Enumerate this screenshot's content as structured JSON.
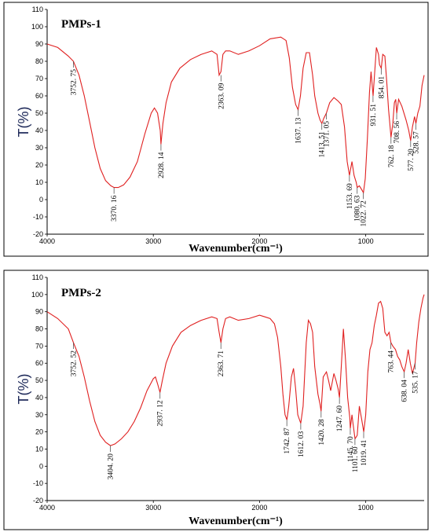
{
  "chart_data": [
    {
      "type": "line",
      "title": "PMPs-1",
      "xlabel": "Wavenumber(cm⁻¹)",
      "ylabel": "T(%)",
      "xlim": [
        4000,
        450
      ],
      "ylim": [
        -20,
        110
      ],
      "yticks": [
        -20,
        -10,
        0,
        10,
        20,
        30,
        40,
        50,
        60,
        70,
        80,
        90,
        100,
        110
      ],
      "xticks": [
        4000,
        3000,
        2000,
        1000
      ],
      "peaks": [
        {
          "label": "3752. 75",
          "x": 3752.75,
          "y": 80
        },
        {
          "label": "3370. 16",
          "x": 3370.16,
          "y": 7
        },
        {
          "label": "2928. 14",
          "x": 2928.14,
          "y": 32
        },
        {
          "label": "2363. 09",
          "x": 2363.09,
          "y": 72
        },
        {
          "label": "1637. 13",
          "x": 1637.13,
          "y": 52
        },
        {
          "label": "1413. 51",
          "x": 1413.51,
          "y": 44
        },
        {
          "label": "1371. 05",
          "x": 1371.05,
          "y": 50
        },
        {
          "label": "1153. 69",
          "x": 1153.69,
          "y": 14
        },
        {
          "label": "1080. 63",
          "x": 1080.63,
          "y": 7
        },
        {
          "label": "1022. 72",
          "x": 1022.72,
          "y": 4
        },
        {
          "label": "931. 51",
          "x": 931.51,
          "y": 60
        },
        {
          "label": "854. 01",
          "x": 854.01,
          "y": 76
        },
        {
          "label": "762. 18",
          "x": 762.18,
          "y": 36
        },
        {
          "label": "708. 56",
          "x": 708.56,
          "y": 50
        },
        {
          "label": "577. 20",
          "x": 577.2,
          "y": 34
        },
        {
          "label": "528. 57",
          "x": 528.57,
          "y": 44
        }
      ],
      "series": [
        {
          "x": [
            4000,
            3900,
            3800,
            3752,
            3700,
            3650,
            3600,
            3550,
            3500,
            3450,
            3400,
            3370,
            3330,
            3280,
            3220,
            3150,
            3080,
            3020,
            2990,
            2960,
            2935,
            2928,
            2910,
            2880,
            2830,
            2750,
            2650,
            2550,
            2450,
            2400,
            2380,
            2363,
            2345,
            2320,
            2280,
            2200,
            2100,
            2000,
            1900,
            1800,
            1750,
            1720,
            1690,
            1660,
            1637,
            1615,
            1590,
            1560,
            1530,
            1500,
            1480,
            1450,
            1430,
            1413,
            1395,
            1371,
            1340,
            1300,
            1260,
            1230,
            1200,
            1175,
            1153,
            1130,
            1110,
            1090,
            1080,
            1060,
            1040,
            1022,
            1005,
            985,
            965,
            950,
            940,
            931,
            920,
            900,
            880,
            870,
            854,
            840,
            820,
            800,
            785,
            775,
            762,
            745,
            730,
            718,
            708,
            690,
            660,
            620,
            595,
            577,
            560,
            540,
            528,
            510,
            490,
            470,
            450
          ],
          "y": [
            90,
            88,
            83,
            80,
            72,
            60,
            45,
            30,
            18,
            11,
            8,
            7,
            7,
            8.5,
            13,
            22,
            38,
            50,
            53,
            50,
            40,
            32,
            44,
            56,
            68,
            76,
            81,
            84,
            86,
            84,
            72,
            74,
            84,
            86,
            86,
            84,
            86,
            89,
            93,
            94,
            92,
            82,
            65,
            55,
            52,
            60,
            76,
            85,
            85,
            72,
            60,
            50,
            46,
            44,
            47,
            50,
            56,
            59,
            57,
            55,
            42,
            22,
            14,
            22,
            14,
            10,
            7,
            8,
            6,
            4,
            12,
            35,
            62,
            74,
            67,
            60,
            70,
            88,
            84,
            78,
            76,
            84,
            83,
            66,
            52,
            45,
            36,
            44,
            56,
            58,
            50,
            58,
            54,
            46,
            40,
            34,
            42,
            48,
            44,
            50,
            54,
            66,
            72
          ]
        }
      ]
    },
    {
      "type": "line",
      "title": "PMPs-2",
      "xlabel": "Wavenumber(cm⁻¹)",
      "ylabel": "T(%)",
      "xlim": [
        4000,
        450
      ],
      "ylim": [
        -20,
        110
      ],
      "yticks": [
        -20,
        -10,
        0,
        10,
        20,
        30,
        40,
        50,
        60,
        70,
        80,
        90,
        100,
        110
      ],
      "xticks": [
        4000,
        3000,
        2000,
        1000
      ],
      "peaks": [
        {
          "label": "3752. 52",
          "x": 3752.52,
          "y": 72
        },
        {
          "label": "3404. 20",
          "x": 3404.2,
          "y": 12
        },
        {
          "label": "2937. 12",
          "x": 2937.12,
          "y": 43
        },
        {
          "label": "2363. 71",
          "x": 2363.71,
          "y": 72
        },
        {
          "label": "1742. 87",
          "x": 1742.87,
          "y": 27
        },
        {
          "label": "1612. 03",
          "x": 1612.03,
          "y": 25
        },
        {
          "label": "1420. 28",
          "x": 1420.28,
          "y": 32
        },
        {
          "label": "1247. 60",
          "x": 1247.6,
          "y": 40
        },
        {
          "label": "1145. 70",
          "x": 1145.7,
          "y": 22
        },
        {
          "label": "1101. 60",
          "x": 1101.6,
          "y": 16
        },
        {
          "label": "1019. 41",
          "x": 1019.41,
          "y": 20
        },
        {
          "label": "763. 44",
          "x": 763.44,
          "y": 72
        },
        {
          "label": "638. 04",
          "x": 638.04,
          "y": 55
        },
        {
          "label": "535. 17",
          "x": 535.17,
          "y": 60
        }
      ],
      "series": [
        {
          "x": [
            4000,
            3900,
            3800,
            3752,
            3700,
            3650,
            3600,
            3550,
            3500,
            3450,
            3404,
            3360,
            3300,
            3240,
            3180,
            3120,
            3060,
            3000,
            2980,
            2960,
            2937,
            2915,
            2880,
            2820,
            2740,
            2650,
            2550,
            2450,
            2400,
            2380,
            2363,
            2345,
            2320,
            2280,
            2200,
            2100,
            2000,
            1950,
            1900,
            1860,
            1830,
            1800,
            1780,
            1760,
            1742,
            1725,
            1700,
            1680,
            1660,
            1640,
            1612,
            1590,
            1560,
            1540,
            1520,
            1500,
            1480,
            1450,
            1430,
            1420,
            1400,
            1370,
            1350,
            1330,
            1300,
            1280,
            1260,
            1247,
            1230,
            1210,
            1190,
            1170,
            1150,
            1145,
            1130,
            1120,
            1101,
            1080,
            1060,
            1040,
            1019,
            1000,
            980,
            960,
            940,
            920,
            900,
            880,
            860,
            840,
            820,
            800,
            780,
            763,
            745,
            720,
            700,
            680,
            660,
            638,
            620,
            600,
            580,
            560,
            535,
            520,
            500,
            480,
            460,
            450
          ],
          "y": [
            90,
            86,
            80,
            72,
            64,
            52,
            38,
            26,
            18,
            14,
            12,
            13,
            16,
            20,
            26,
            34,
            44,
            51,
            52,
            48,
            43,
            50,
            60,
            70,
            78,
            82,
            85,
            87,
            86,
            78,
            72,
            80,
            86,
            87,
            85,
            86,
            88,
            87,
            86,
            83,
            75,
            58,
            42,
            30,
            27,
            35,
            52,
            57,
            45,
            30,
            25,
            35,
            72,
            85,
            83,
            78,
            58,
            42,
            36,
            32,
            52,
            55,
            50,
            44,
            54,
            50,
            45,
            40,
            58,
            80,
            62,
            40,
            28,
            22,
            30,
            25,
            16,
            18,
            35,
            28,
            20,
            30,
            55,
            68,
            72,
            82,
            88,
            95,
            96,
            92,
            78,
            76,
            78,
            72,
            70,
            68,
            64,
            62,
            58,
            55,
            60,
            68,
            60,
            54,
            60,
            72,
            84,
            92,
            98,
            100
          ]
        }
      ]
    }
  ]
}
